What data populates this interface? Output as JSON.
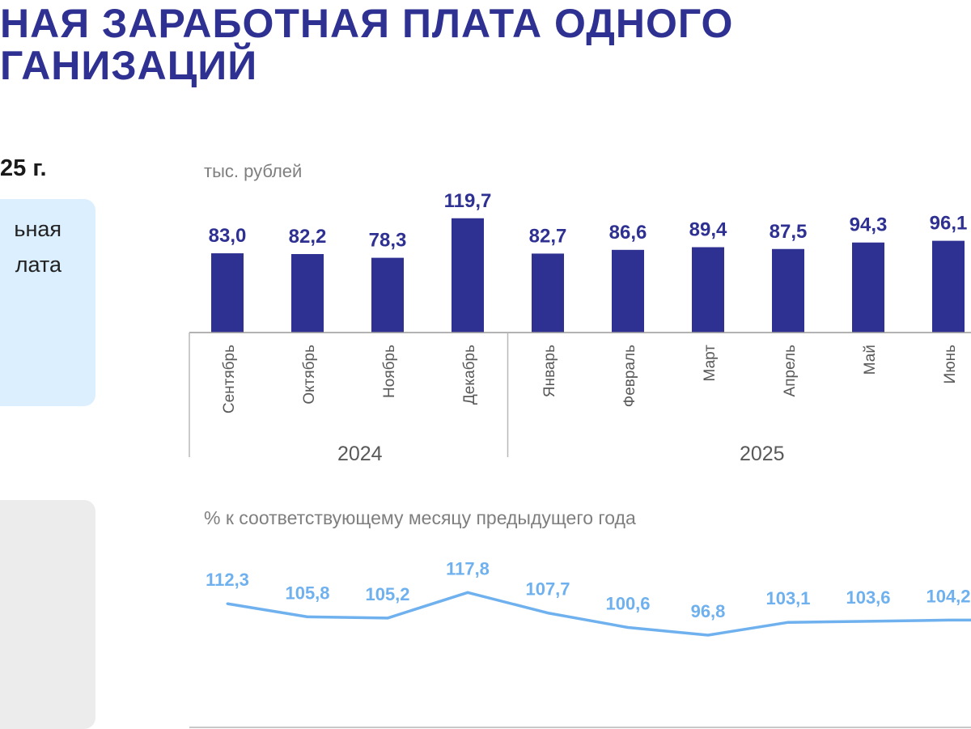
{
  "header": {
    "title_line1": "НАЯ  ЗАРАБОТНАЯ  ПЛАТА ОДНОГО",
    "title_line2": "ГАНИЗАЦИЙ",
    "period": "25 г."
  },
  "side_card": {
    "line1": "ьная",
    "line2": "лата"
  },
  "colors": {
    "title": "#2e3192",
    "bar": "#2e3192",
    "bar_label": "#2e3192",
    "line": "#6fb1ee",
    "line_label": "#6fb1ee",
    "card_blue": "#dcefff",
    "card_grey": "#ececec"
  },
  "chart_data": [
    {
      "type": "bar",
      "ylabel": "тыс. рублей",
      "categories": [
        "Сентябрь",
        "Октябрь",
        "Ноябрь",
        "Декабрь",
        "Январь",
        "Февраль",
        "Март",
        "Апрель",
        "Май",
        "Июнь"
      ],
      "values": [
        83.0,
        82.2,
        78.3,
        119.7,
        82.7,
        86.6,
        89.4,
        87.5,
        94.3,
        96.1
      ],
      "value_labels": [
        "83,0",
        "82,2",
        "78,3",
        "119,7",
        "82,7",
        "86,6",
        "89,4",
        "87,5",
        "94,3",
        "96,1"
      ],
      "groups": [
        {
          "label": "2024",
          "count": 4
        },
        {
          "label": "2025",
          "count": 6
        }
      ]
    },
    {
      "type": "line",
      "title": "% к соответствующему месяцу предыдущего года",
      "categories": [
        "Сентябрь",
        "Октябрь",
        "Ноябрь",
        "Декабрь",
        "Январь",
        "Февраль",
        "Март",
        "Апрель",
        "Май",
        "Июнь"
      ],
      "values": [
        112.3,
        105.8,
        105.2,
        117.8,
        107.7,
        100.6,
        96.8,
        103.1,
        103.6,
        104.2
      ],
      "value_labels": [
        "112,3",
        "105,8",
        "105,2",
        "117,8",
        "107,7",
        "100,6",
        "96,8",
        "103,1",
        "103,6",
        "104,2"
      ]
    }
  ]
}
